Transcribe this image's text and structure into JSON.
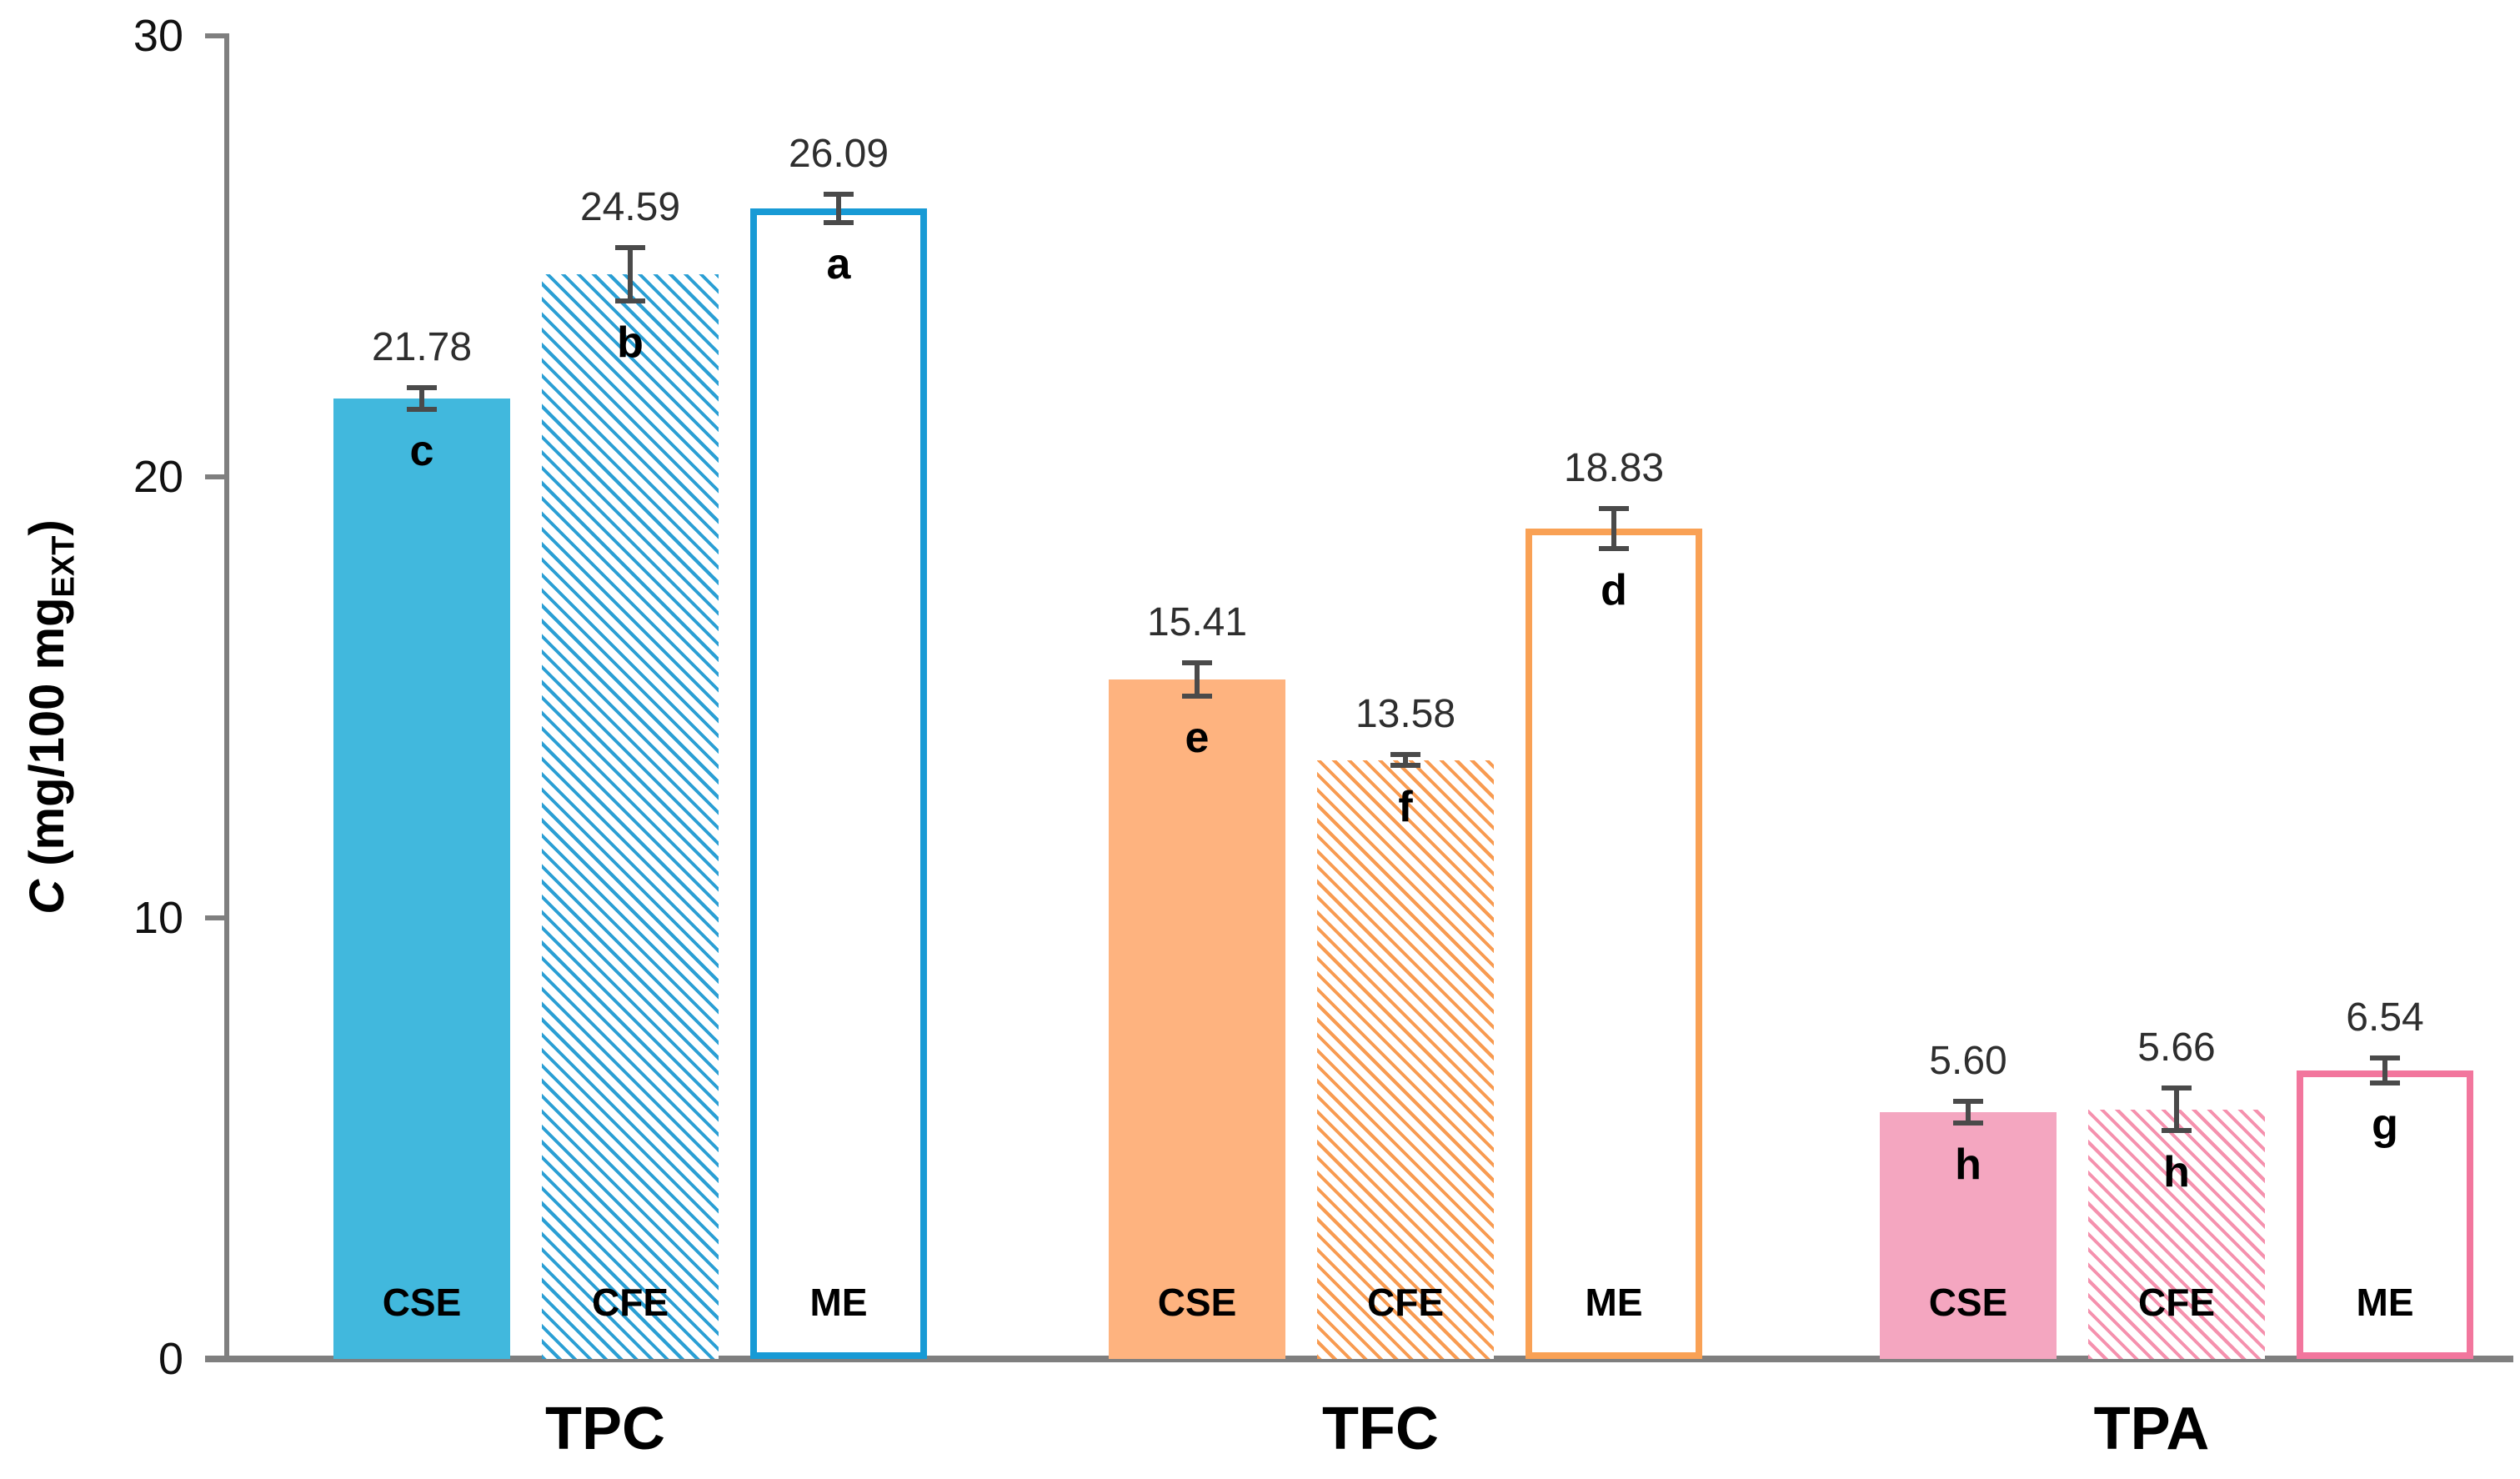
{
  "chart_data": {
    "type": "bar",
    "title": "",
    "ylabel": {
      "symbol": "C",
      "units": " (mg/100 mg",
      "subscript": "EXT",
      "close": ")"
    },
    "ylim": [
      0,
      30
    ],
    "yticks": [
      {
        "value": 0,
        "label": "0"
      },
      {
        "value": 10,
        "label": "10"
      },
      {
        "value": 20,
        "label": "20"
      },
      {
        "value": 30,
        "label": "30"
      }
    ],
    "grid": false,
    "legend_position": "none",
    "categories": [
      "TPC",
      "TFC",
      "TPA"
    ],
    "series_labels": [
      "CSE",
      "CFE",
      "ME"
    ],
    "series_styles": {
      "CSE": "solid",
      "CFE": "hatched",
      "ME": "outlined"
    },
    "error_bar_color": "#4a4a4a",
    "axis_color": "#7f7f7f",
    "groups": [
      {
        "label": "TPC",
        "bars": [
          {
            "name": "CSE",
            "value": 21.78,
            "value_label": "21.78",
            "error": 0.25,
            "sig_letter": "c",
            "pattern": "solid",
            "color": "#41B8DD"
          },
          {
            "name": "CFE",
            "value": 24.59,
            "value_label": "24.59",
            "error": 0.6,
            "sig_letter": "b",
            "pattern": "hatched",
            "color": "#2B9FD4"
          },
          {
            "name": "ME",
            "value": 26.09,
            "value_label": "26.09",
            "error": 0.32,
            "sig_letter": "a",
            "pattern": "outlined",
            "color": "#189AD5"
          }
        ]
      },
      {
        "label": "TFC",
        "bars": [
          {
            "name": "CSE",
            "value": 15.41,
            "value_label": "15.41",
            "error": 0.38,
            "sig_letter": "e",
            "pattern": "solid",
            "color": "#FEB37F"
          },
          {
            "name": "CFE",
            "value": 13.58,
            "value_label": "13.58",
            "error": 0.13,
            "sig_letter": "f",
            "pattern": "hatched",
            "color": "#F89B51"
          },
          {
            "name": "ME",
            "value": 18.83,
            "value_label": "18.83",
            "error": 0.45,
            "sig_letter": "d",
            "pattern": "outlined",
            "color": "#F9A155"
          }
        ]
      },
      {
        "label": "TPA",
        "bars": [
          {
            "name": "CSE",
            "value": 5.6,
            "value_label": "5.60",
            "error": 0.25,
            "sig_letter": "h",
            "pattern": "solid",
            "color": "#F4A6C0"
          },
          {
            "name": "CFE",
            "value": 5.66,
            "value_label": "5.66",
            "error": 0.48,
            "sig_letter": "h",
            "pattern": "hatched",
            "color": "#F591AE"
          },
          {
            "name": "ME",
            "value": 6.54,
            "value_label": "6.54",
            "error": 0.28,
            "sig_letter": "g",
            "pattern": "outlined",
            "color": "#F2769D"
          }
        ]
      }
    ]
  }
}
